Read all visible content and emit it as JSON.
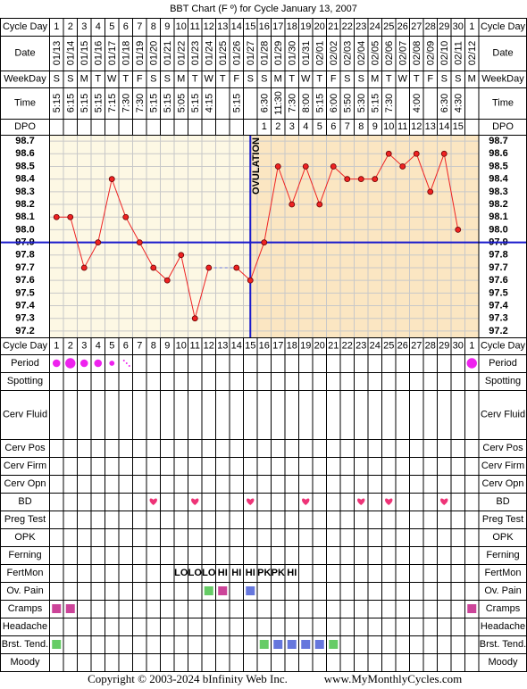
{
  "chart_data": {
    "type": "line",
    "title": "BBT Chart (F º) for Cycle January 13, 2007",
    "row_labels": {
      "cycle_day": "Cycle Day",
      "date": "Date",
      "weekday": "WeekDay",
      "time": "Time",
      "dpo": "DPO"
    },
    "cycle_days": [
      1,
      2,
      3,
      4,
      5,
      6,
      7,
      8,
      9,
      10,
      11,
      12,
      13,
      14,
      15,
      16,
      17,
      18,
      19,
      20,
      21,
      22,
      23,
      24,
      25,
      26,
      27,
      28,
      29,
      30,
      1
    ],
    "dates": [
      "01/13",
      "01/14",
      "01/15",
      "01/16",
      "01/17",
      "01/18",
      "01/19",
      "01/20",
      "01/21",
      "01/22",
      "01/23",
      "01/24",
      "01/25",
      "01/26",
      "01/27",
      "01/28",
      "01/29",
      "01/30",
      "01/31",
      "02/01",
      "02/02",
      "02/03",
      "02/04",
      "02/05",
      "02/06",
      "02/07",
      "02/08",
      "02/09",
      "02/10",
      "02/11",
      "02/12"
    ],
    "weekdays": [
      "S",
      "S",
      "M",
      "T",
      "W",
      "T",
      "F",
      "S",
      "S",
      "M",
      "T",
      "W",
      "T",
      "F",
      "S",
      "S",
      "M",
      "T",
      "W",
      "T",
      "F",
      "S",
      "S",
      "M",
      "T",
      "W",
      "T",
      "F",
      "S",
      "S",
      "M"
    ],
    "times": [
      "5:15",
      "6:15",
      "5:15",
      "5:15",
      "7:15",
      "7:30",
      "7:30",
      "5:15",
      "5:15",
      "5:05",
      "5:15",
      "4:15",
      null,
      "5:15",
      null,
      "6:30",
      "11:30",
      "7:30",
      "8:00",
      "5:15",
      "6:00",
      "5:50",
      "5:30",
      "5:15",
      "7:30",
      null,
      "4:00",
      null,
      "6:30",
      "4:30",
      null
    ],
    "dpo": [
      null,
      null,
      null,
      null,
      null,
      null,
      null,
      null,
      null,
      null,
      null,
      null,
      null,
      null,
      null,
      1,
      2,
      3,
      4,
      5,
      6,
      7,
      8,
      9,
      10,
      11,
      12,
      13,
      14,
      15,
      null
    ],
    "values": [
      98.1,
      98.1,
      97.7,
      97.9,
      98.4,
      98.1,
      97.9,
      97.7,
      97.6,
      97.8,
      97.3,
      97.7,
      null,
      97.7,
      97.6,
      97.9,
      98.5,
      98.2,
      98.5,
      98.2,
      98.5,
      98.4,
      98.4,
      98.4,
      98.6,
      98.5,
      98.6,
      98.3,
      98.6,
      98.0,
      null
    ],
    "color": "#ee2222",
    "ylim": [
      97.15,
      98.75
    ],
    "yticks": [
      98.7,
      98.6,
      98.5,
      98.4,
      98.3,
      98.2,
      98.1,
      {
        "value": 98,
        "label": "98.0"
      },
      97.9,
      97.8,
      97.7,
      97.6,
      97.5,
      97.4,
      97.3,
      97.2
    ],
    "coverline": 97.9,
    "coverline_color": "#1a1acc",
    "ovulation_day": 15,
    "ovulation_label": "OVULATION",
    "rows": [
      {
        "label": "Period",
        "columns": [
          1,
          2,
          3,
          4,
          5,
          6,
          31
        ],
        "intensity": [
          2,
          3,
          2,
          2,
          1,
          0.5,
          3
        ],
        "color": "#ee22ee"
      },
      {
        "label": "Spotting"
      },
      {
        "label": "Cerv Fluid"
      },
      {
        "label": "Cerv Pos"
      },
      {
        "label": "Cerv Firm"
      },
      {
        "label": "Cerv Opn"
      },
      {
        "label": "BD",
        "columns": [
          8,
          11,
          15,
          19,
          23,
          25,
          29
        ],
        "color": "#ee3377"
      },
      {
        "label": "Preg Test"
      },
      {
        "label": "OPK"
      },
      {
        "label": "Ferning"
      },
      {
        "label": "FertMon",
        "columns": [
          10,
          11,
          12,
          13,
          14,
          15,
          16,
          17,
          18
        ],
        "readings": [
          "LO",
          "LO",
          "LO",
          "HI",
          "HI",
          "HI",
          "PK",
          "PK",
          "HI"
        ],
        "color": "#228822"
      },
      {
        "label": "Ov. Pain",
        "columns": [
          12,
          13,
          15
        ],
        "colors": [
          "#66cc66",
          "#cc4499",
          "#6677dd"
        ]
      },
      {
        "label": "Cramps",
        "columns": [
          1,
          2,
          31
        ],
        "colors": [
          "#cc4499",
          "#cc4499",
          "#cc4499"
        ]
      },
      {
        "label": "Headache"
      },
      {
        "label": "Brst. Tend.",
        "columns": [
          1,
          16,
          17,
          18,
          19,
          20,
          21
        ],
        "colors": [
          "#66cc66",
          "#66cc66",
          "#6677dd",
          "#6677dd",
          "#6677dd",
          "#6677dd",
          "#66cc66"
        ]
      },
      {
        "label": "Moody"
      }
    ]
  },
  "footer": {
    "copyright": "Copyright © 2003-2024 bInfinity Web Inc.",
    "site": "www.MyMonthlyCycles.com"
  }
}
